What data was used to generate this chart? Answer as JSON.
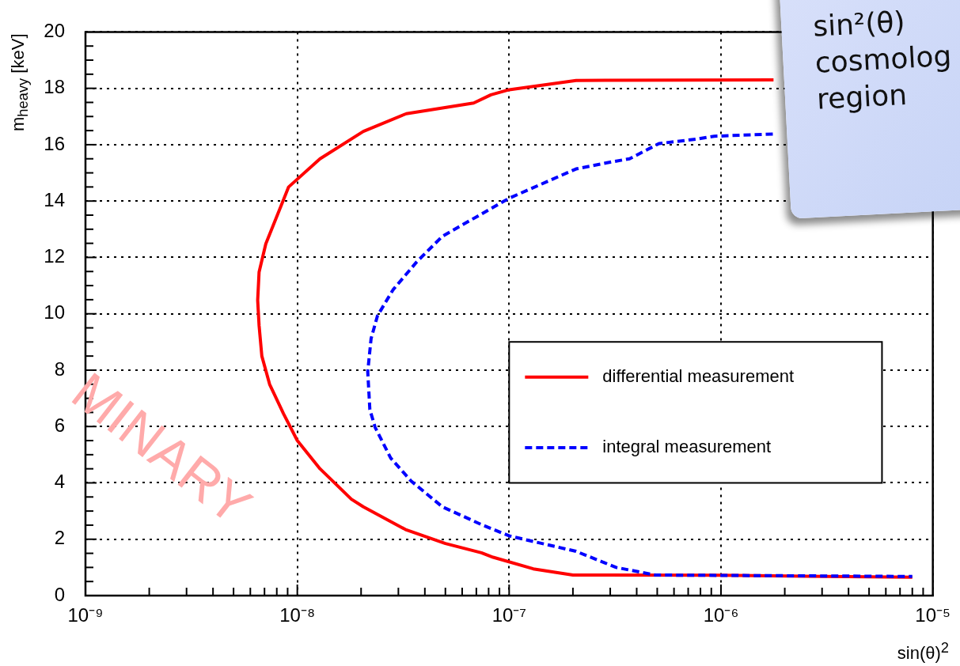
{
  "chart_data": {
    "type": "line",
    "xlabel": "sin(θ)$^{2}$",
    "ylabel": "m$_{heavy}$ [keV]",
    "log": "x",
    "xlim": [
      1e-09,
      1e-05
    ],
    "ylim": [
      0,
      20
    ],
    "xticks": [
      {
        "value": 1e-09,
        "label": "10⁻⁹"
      },
      {
        "value": 1e-08,
        "label": "10⁻⁸"
      },
      {
        "value": 1e-07,
        "label": "10⁻⁷"
      },
      {
        "value": 1e-06,
        "label": "10⁻⁶"
      },
      {
        "value": 1e-05,
        "label": "10⁻⁵"
      }
    ],
    "yticks": [
      0,
      2,
      4,
      6,
      8,
      10,
      12,
      14,
      16,
      18,
      20
    ],
    "grid": true,
    "legend": "right",
    "marker": "none",
    "series": [
      {
        "name": "differential measurement",
        "color": "#ff0000",
        "line_style": "solid",
        "x": [
          1.77e-06,
          2.07e-07,
          1e-07,
          8.2e-08,
          6.8e-08,
          3.27e-08,
          2.05e-08,
          1.28e-08,
          9.1e-09,
          7.1e-09,
          6.6e-09,
          6.5e-09,
          6.6e-09,
          6.8e-09,
          7.4e-09,
          8.6e-09,
          1e-08,
          1.28e-08,
          1.8e-08,
          2.05e-08,
          3.27e-08,
          5e-08,
          7.4e-08,
          8.4e-08,
          1.3e-07,
          2e-07,
          1e-06,
          8e-06
        ],
        "values": [
          18.3,
          18.28,
          17.95,
          17.77,
          17.48,
          17.1,
          16.47,
          15.5,
          14.5,
          12.48,
          11.48,
          10.48,
          9.58,
          8.5,
          7.5,
          6.46,
          5.5,
          4.5,
          3.42,
          3.15,
          2.33,
          1.85,
          1.52,
          1.36,
          0.95,
          0.73,
          0.72,
          0.65
        ]
      },
      {
        "name": "integral measurement",
        "color": "#0000ff",
        "line_style": "dashed",
        "x": [
          1.77e-06,
          9.3e-07,
          7.7e-07,
          5.1e-07,
          3.7e-07,
          3.1e-07,
          2.07e-07,
          1e-07,
          4.84e-08,
          3.66e-08,
          2.83e-08,
          2.39e-08,
          2.23e-08,
          2.15e-08,
          2.2e-08,
          2.33e-08,
          2.76e-08,
          3.44e-08,
          4.84e-08,
          7.4e-08,
          1e-07,
          2.07e-07,
          3.2e-07,
          4.9e-07,
          8e-06
        ],
        "values": [
          16.38,
          16.3,
          16.2,
          16.04,
          15.5,
          15.4,
          15.14,
          14.1,
          12.75,
          11.84,
          10.85,
          9.93,
          9.12,
          7.95,
          6.6,
          5.97,
          4.88,
          4.07,
          3.15,
          2.52,
          2.12,
          1.57,
          1.0,
          0.73,
          0.68
        ]
      }
    ],
    "annotations": [
      "sin²(θ)",
      "cosmolog",
      "region",
      "MINARY"
    ]
  }
}
